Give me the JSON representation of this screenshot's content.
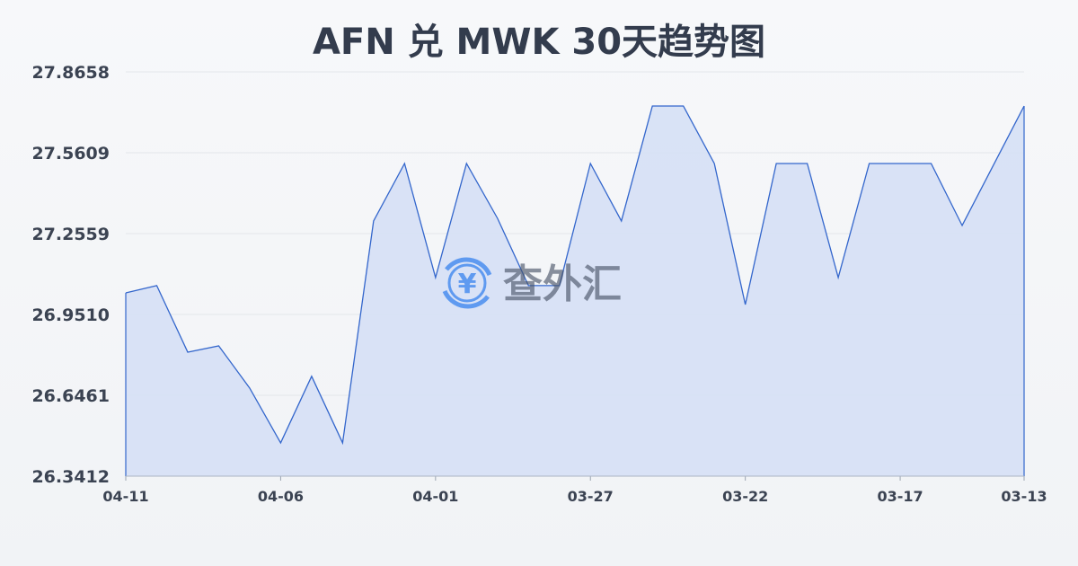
{
  "chart_data": {
    "type": "area",
    "title": "AFN 兑 MWK 30天趋势图",
    "xlabel": "",
    "ylabel": "",
    "ylim": [
      26.3412,
      27.8658
    ],
    "yticks": [
      "27.8658",
      "27.5609",
      "27.2559",
      "26.9510",
      "26.6461",
      "26.3412"
    ],
    "xticks": [
      "04-11",
      "04-06",
      "04-01",
      "03-27",
      "03-22",
      "03-17",
      "03-13"
    ],
    "grid": true,
    "line_color": "#3366cc",
    "fill_color": "#d6e0f5",
    "values": [
      27.0325,
      27.0598,
      26.8089,
      26.8326,
      26.6734,
      26.4668,
      26.7178,
      26.4668,
      27.3035,
      27.5203,
      27.0901,
      27.5203,
      27.3136,
      27.0598,
      27.0598,
      27.5203,
      27.3035,
      27.7371,
      27.7371,
      27.5203,
      26.9884,
      27.5203,
      27.5203,
      27.0901,
      27.5203,
      27.5203,
      27.5203,
      27.2865,
      27.5118,
      27.7371
    ]
  },
  "watermark": {
    "text": "查外汇",
    "icon": "yen-exchange-icon",
    "color": "#4a8ef0"
  }
}
